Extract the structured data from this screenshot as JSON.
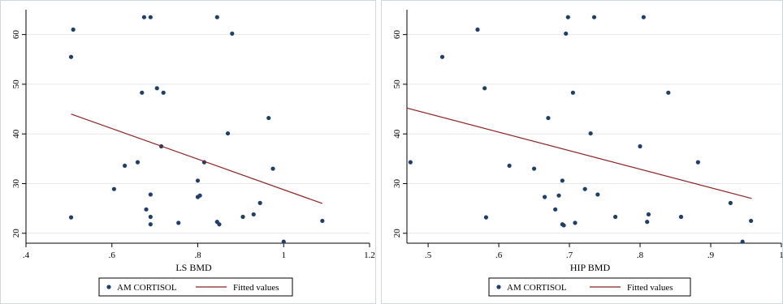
{
  "chart_data": [
    {
      "type": "scatter",
      "xlabel": "LS BMD",
      "ylabel": "",
      "xlim": [
        0.4,
        1.2
      ],
      "ylim": [
        18,
        65
      ],
      "x_ticks": [
        ".4",
        ".6",
        ".8",
        "1",
        "1.2"
      ],
      "x_tick_values": [
        0.4,
        0.6,
        0.8,
        1.0,
        1.2
      ],
      "y_ticks": [
        "20",
        "30",
        "40",
        "50",
        "60"
      ],
      "y_tick_values": [
        20,
        30,
        40,
        50,
        60
      ],
      "grid": true,
      "legend_position": "bottom",
      "series": [
        {
          "name": "AM CORTISOL",
          "kind": "points",
          "color": "#1f3f66",
          "points": [
            [
              0.505,
              55.5
            ],
            [
              0.505,
              23.2
            ],
            [
              0.51,
              61.0
            ],
            [
              0.605,
              28.9
            ],
            [
              0.63,
              33.6
            ],
            [
              0.66,
              34.3
            ],
            [
              0.67,
              48.3
            ],
            [
              0.675,
              63.5
            ],
            [
              0.68,
              24.8
            ],
            [
              0.69,
              63.5
            ],
            [
              0.69,
              27.8
            ],
            [
              0.69,
              23.3
            ],
            [
              0.69,
              21.8
            ],
            [
              0.705,
              49.2
            ],
            [
              0.715,
              37.5
            ],
            [
              0.72,
              48.3
            ],
            [
              0.755,
              22.1
            ],
            [
              0.8,
              27.3
            ],
            [
              0.8,
              30.6
            ],
            [
              0.805,
              27.6
            ],
            [
              0.815,
              34.3
            ],
            [
              0.845,
              63.5
            ],
            [
              0.845,
              22.3
            ],
            [
              0.85,
              21.8
            ],
            [
              0.87,
              40.1
            ],
            [
              0.88,
              60.2
            ],
            [
              0.905,
              23.3
            ],
            [
              0.93,
              23.8
            ],
            [
              0.945,
              26.1
            ],
            [
              0.965,
              43.2
            ],
            [
              0.975,
              33.0
            ],
            [
              1.0,
              18.3
            ],
            [
              1.09,
              22.5
            ]
          ]
        },
        {
          "name": "Fitted values",
          "kind": "line",
          "color": "#8b2323",
          "points": [
            [
              0.505,
              44.0
            ],
            [
              1.09,
              26.0
            ]
          ]
        }
      ]
    },
    {
      "type": "scatter",
      "xlabel": "HIP BMD",
      "ylabel": "",
      "xlim": [
        0.47,
        1.0
      ],
      "ylim": [
        18,
        65
      ],
      "x_ticks": [
        ".5",
        ".6",
        ".7",
        ".8",
        ".9",
        "1"
      ],
      "x_tick_values": [
        0.5,
        0.6,
        0.7,
        0.8,
        0.9,
        1.0
      ],
      "y_ticks": [
        "20",
        "30",
        "40",
        "50",
        "60"
      ],
      "y_tick_values": [
        20,
        30,
        40,
        50,
        60
      ],
      "grid": true,
      "legend_position": "bottom",
      "series": [
        {
          "name": "AM CORTISOL",
          "kind": "points",
          "color": "#1f3f66",
          "points": [
            [
              0.475,
              34.3
            ],
            [
              0.52,
              55.5
            ],
            [
              0.57,
              61.0
            ],
            [
              0.58,
              49.2
            ],
            [
              0.582,
              23.2
            ],
            [
              0.615,
              33.6
            ],
            [
              0.65,
              33.0
            ],
            [
              0.665,
              27.3
            ],
            [
              0.67,
              43.2
            ],
            [
              0.68,
              24.8
            ],
            [
              0.685,
              27.6
            ],
            [
              0.69,
              21.8
            ],
            [
              0.69,
              30.6
            ],
            [
              0.692,
              21.6
            ],
            [
              0.695,
              60.2
            ],
            [
              0.698,
              63.5
            ],
            [
              0.705,
              48.3
            ],
            [
              0.708,
              22.1
            ],
            [
              0.722,
              28.9
            ],
            [
              0.73,
              40.1
            ],
            [
              0.735,
              63.5
            ],
            [
              0.74,
              27.8
            ],
            [
              0.765,
              23.3
            ],
            [
              0.8,
              37.5
            ],
            [
              0.805,
              63.5
            ],
            [
              0.81,
              22.3
            ],
            [
              0.812,
              23.8
            ],
            [
              0.84,
              48.3
            ],
            [
              0.858,
              23.3
            ],
            [
              0.882,
              34.3
            ],
            [
              0.928,
              26.1
            ],
            [
              0.945,
              18.3
            ],
            [
              0.957,
              22.5
            ]
          ]
        },
        {
          "name": "Fitted values",
          "kind": "line",
          "color": "#8b2323",
          "points": [
            [
              0.47,
              45.2
            ],
            [
              0.958,
              27.0
            ]
          ]
        }
      ]
    }
  ]
}
